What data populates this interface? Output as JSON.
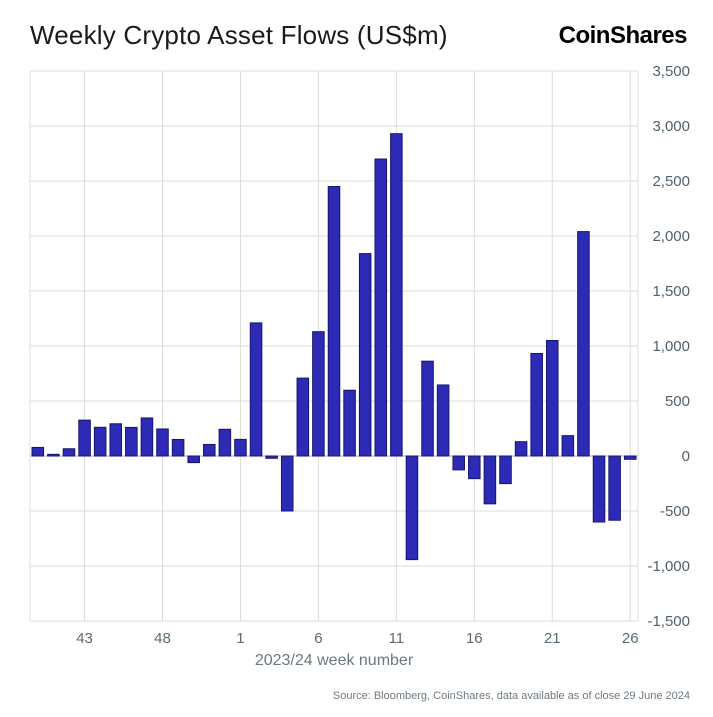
{
  "header": {
    "title": "Weekly Crypto Asset Flows (US$m)",
    "logo_text": "CoinShares"
  },
  "footer": {
    "source": "Source: Bloomberg, CoinShares, data available as of close 29 June 2024"
  },
  "chart_data": {
    "type": "bar",
    "title": "Weekly Crypto Asset Flows (US$m)",
    "xlabel": "2023/24 week number",
    "ylabel": "",
    "ylim": [
      -1500,
      3500
    ],
    "y_ticks": [
      3500,
      3000,
      2500,
      2000,
      1500,
      1000,
      500,
      0,
      -500,
      -1000,
      -1500
    ],
    "x_tick_labels": [
      "43",
      "48",
      "1",
      "6",
      "11",
      "16",
      "21",
      "26"
    ],
    "categories": [
      "40",
      "41",
      "42",
      "43",
      "44",
      "45",
      "46",
      "47",
      "48",
      "49",
      "50",
      "51",
      "52",
      "1",
      "2",
      "3",
      "4",
      "5",
      "6",
      "7",
      "8",
      "9",
      "10",
      "11",
      "12",
      "13",
      "14",
      "15",
      "16",
      "17",
      "18",
      "19",
      "20",
      "21",
      "22",
      "23",
      "24",
      "25",
      "26"
    ],
    "values": [
      78,
      15,
      66,
      326,
      261,
      293,
      260,
      346,
      246,
      150,
      -60,
      105,
      243,
      151,
      1210,
      -21,
      -500,
      708,
      1130,
      2450,
      598,
      1840,
      2700,
      2930,
      -942,
      862,
      646,
      -126,
      -206,
      -435,
      -251,
      130,
      932,
      1050,
      185,
      2040,
      -600,
      -584,
      -30
    ],
    "bar_color": "#2D2BB5",
    "bar_edge_color": "#17156E",
    "grid_color": "#dcdcdc",
    "zero_line_color": "#b3b3b3",
    "grid": true,
    "legend_position": "none"
  }
}
